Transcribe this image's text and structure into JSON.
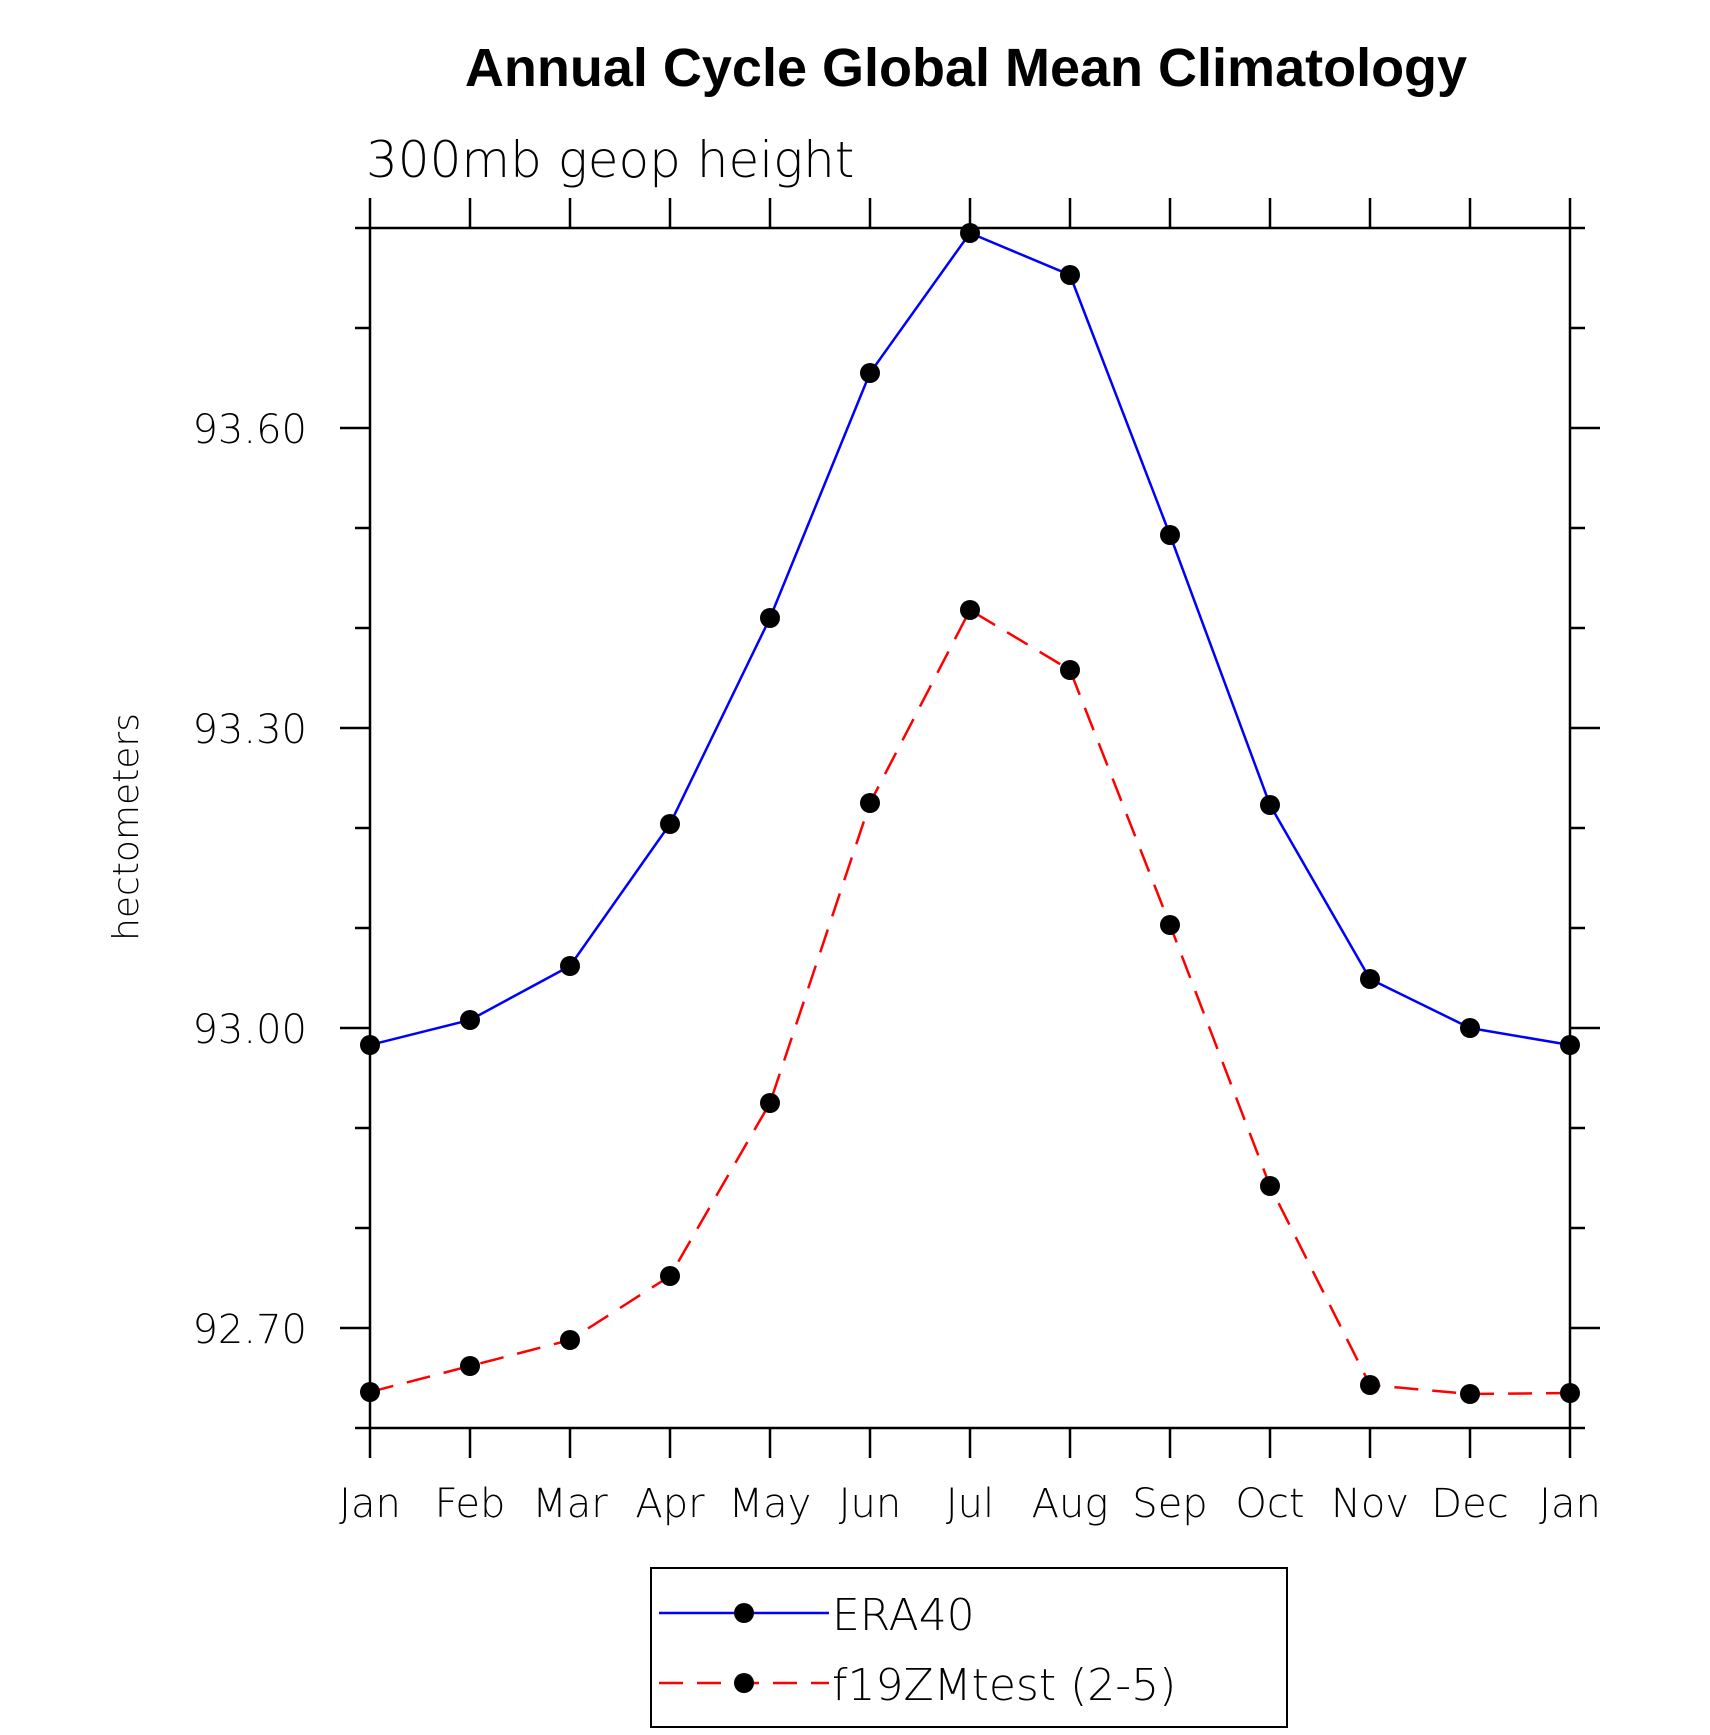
{
  "chart_data": {
    "type": "line",
    "title": "Annual Cycle Global Mean Climatology",
    "subtitle": "300mb geop height",
    "xlabel": "",
    "ylabel": "hectometers",
    "categories": [
      "Jan",
      "Feb",
      "Mar",
      "Apr",
      "May",
      "Jun",
      "Jul",
      "Aug",
      "Sep",
      "Oct",
      "Nov",
      "Dec",
      "Jan"
    ],
    "ylim": [
      92.6,
      93.8
    ],
    "yticks": [
      "92.70",
      "93.00",
      "93.30",
      "93.60"
    ],
    "series": [
      {
        "name": "ERA40",
        "color": "#0000ff",
        "line_style": "solid",
        "marker": "filled-circle",
        "values": [
          92.983,
          93.008,
          93.062,
          93.204,
          93.41,
          93.655,
          93.795,
          93.753,
          93.493,
          93.223,
          93.049,
          93.0,
          92.983
        ]
      },
      {
        "name": "f19ZMtest (2-5)",
        "color": "#ff0000",
        "line_style": "dashed",
        "marker": "filled-circle",
        "values": [
          92.636,
          92.662,
          92.688,
          92.752,
          92.925,
          93.225,
          93.418,
          93.358,
          93.103,
          92.842,
          92.643,
          92.634,
          92.635
        ]
      }
    ],
    "legend_position": "bottom-center",
    "grid": false
  }
}
